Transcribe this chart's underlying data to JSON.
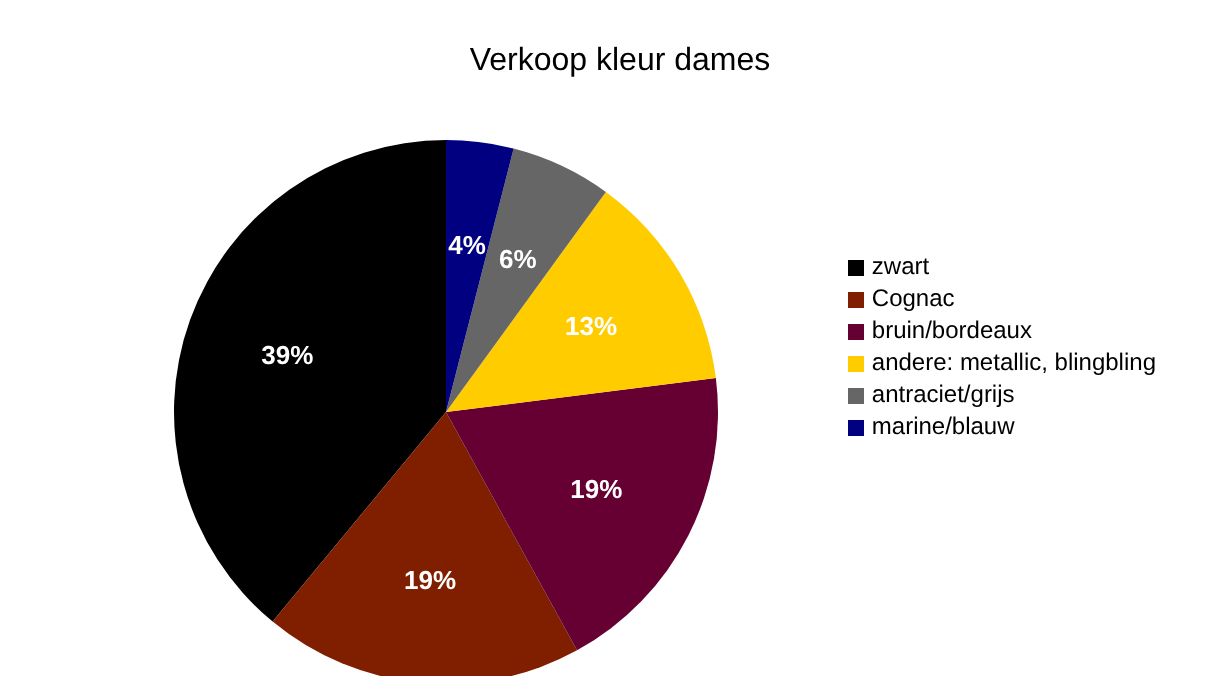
{
  "chart_data": {
    "type": "pie",
    "title": "Verkoop kleur dames",
    "categories": [
      "zwart",
      "Cognac",
      "bruin/bordeaux",
      "andere: metallic, blingbling",
      "antraciet/grijs",
      "marine/blauw"
    ],
    "values": [
      39,
      19,
      19,
      13,
      6,
      4
    ],
    "colors": [
      "#000000",
      "#7f1f00",
      "#660033",
      "#ffcc00",
      "#666666",
      "#000080"
    ],
    "value_labels": [
      "39%",
      "19%",
      "19%",
      "13%",
      "6%",
      "4%"
    ],
    "legend": "right"
  }
}
